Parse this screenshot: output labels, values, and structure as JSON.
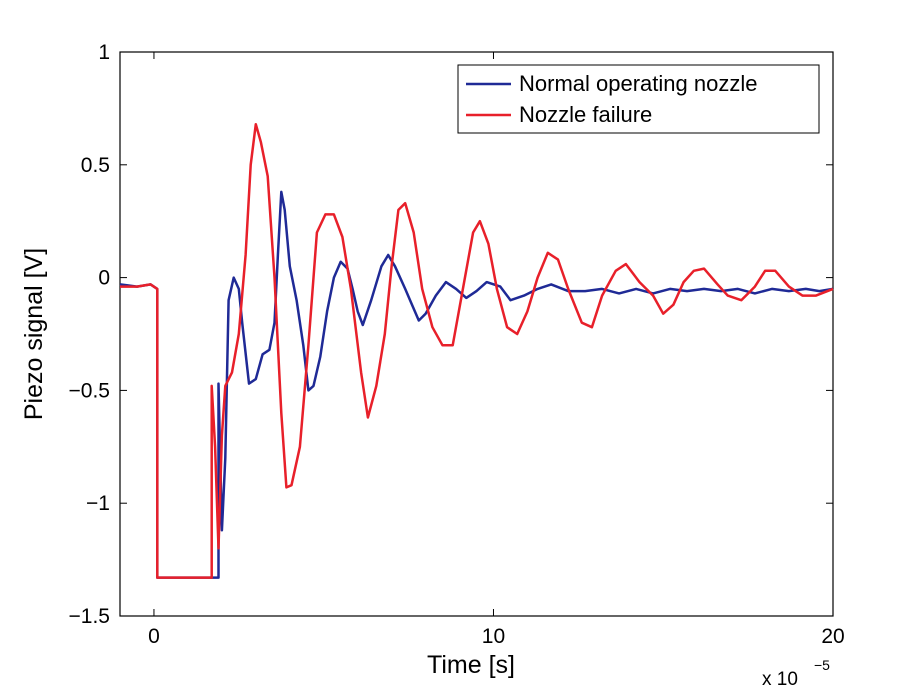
{
  "chart_data": {
    "type": "line",
    "title": "",
    "xlabel": "Time [s]",
    "ylabel": "Piezo signal [V]",
    "x_multiplier_label": "x 10",
    "x_multiplier_exponent": "−5",
    "xlim": [
      -1,
      20
    ],
    "ylim": [
      -1.5,
      1
    ],
    "x_unit_scale": 1e-05,
    "xticks": [
      0,
      10,
      20
    ],
    "xtick_labels": [
      "0",
      "10",
      "20"
    ],
    "yticks": [
      -1.5,
      -1,
      -0.5,
      0,
      0.5,
      1
    ],
    "ytick_labels": [
      "−1.5",
      "−1",
      "−0.5",
      "0",
      "0.5",
      "1"
    ],
    "grid": false,
    "legend_position": "top-right",
    "series": [
      {
        "name": "Normal operating nozzle",
        "color": "#1f2a96",
        "points": [
          [
            -1.0,
            -0.03
          ],
          [
            -0.5,
            -0.04
          ],
          [
            -0.1,
            -0.03
          ],
          [
            0.1,
            -0.05
          ],
          [
            0.1,
            -1.33
          ],
          [
            1.9,
            -1.33
          ],
          [
            1.9,
            -0.47
          ],
          [
            2.0,
            -1.12
          ],
          [
            2.1,
            -0.8
          ],
          [
            2.2,
            -0.1
          ],
          [
            2.35,
            0.0
          ],
          [
            2.5,
            -0.05
          ],
          [
            2.6,
            -0.2
          ],
          [
            2.8,
            -0.47
          ],
          [
            3.0,
            -0.45
          ],
          [
            3.2,
            -0.34
          ],
          [
            3.4,
            -0.32
          ],
          [
            3.55,
            -0.2
          ],
          [
            3.65,
            0.1
          ],
          [
            3.75,
            0.38
          ],
          [
            3.85,
            0.3
          ],
          [
            4.0,
            0.05
          ],
          [
            4.2,
            -0.1
          ],
          [
            4.4,
            -0.3
          ],
          [
            4.55,
            -0.5
          ],
          [
            4.7,
            -0.48
          ],
          [
            4.9,
            -0.35
          ],
          [
            5.1,
            -0.15
          ],
          [
            5.3,
            0.0
          ],
          [
            5.5,
            0.07
          ],
          [
            5.7,
            0.04
          ],
          [
            5.85,
            -0.05
          ],
          [
            6.0,
            -0.15
          ],
          [
            6.15,
            -0.21
          ],
          [
            6.4,
            -0.1
          ],
          [
            6.7,
            0.05
          ],
          [
            6.9,
            0.1
          ],
          [
            7.1,
            0.05
          ],
          [
            7.4,
            -0.05
          ],
          [
            7.6,
            -0.12
          ],
          [
            7.8,
            -0.19
          ],
          [
            8.0,
            -0.16
          ],
          [
            8.3,
            -0.08
          ],
          [
            8.6,
            -0.02
          ],
          [
            8.9,
            -0.05
          ],
          [
            9.2,
            -0.09
          ],
          [
            9.5,
            -0.06
          ],
          [
            9.8,
            -0.02
          ],
          [
            10.2,
            -0.04
          ],
          [
            10.5,
            -0.1
          ],
          [
            10.9,
            -0.08
          ],
          [
            11.3,
            -0.05
          ],
          [
            11.7,
            -0.03
          ],
          [
            12.2,
            -0.06
          ],
          [
            12.7,
            -0.06
          ],
          [
            13.2,
            -0.05
          ],
          [
            13.7,
            -0.07
          ],
          [
            14.2,
            -0.05
          ],
          [
            14.7,
            -0.07
          ],
          [
            15.2,
            -0.05
          ],
          [
            15.7,
            -0.06
          ],
          [
            16.2,
            -0.05
          ],
          [
            16.7,
            -0.06
          ],
          [
            17.2,
            -0.05
          ],
          [
            17.7,
            -0.07
          ],
          [
            18.2,
            -0.05
          ],
          [
            18.7,
            -0.06
          ],
          [
            19.2,
            -0.05
          ],
          [
            19.6,
            -0.06
          ],
          [
            20.0,
            -0.05
          ]
        ]
      },
      {
        "name": "Nozzle failure",
        "color": "#e8202a",
        "points": [
          [
            -1.0,
            -0.04
          ],
          [
            -0.5,
            -0.04
          ],
          [
            -0.1,
            -0.03
          ],
          [
            0.1,
            -0.05
          ],
          [
            0.1,
            -1.33
          ],
          [
            1.7,
            -1.33
          ],
          [
            1.7,
            -0.48
          ],
          [
            1.8,
            -0.75
          ],
          [
            1.9,
            -1.2
          ],
          [
            2.0,
            -0.7
          ],
          [
            2.1,
            -0.48
          ],
          [
            2.3,
            -0.42
          ],
          [
            2.5,
            -0.25
          ],
          [
            2.7,
            0.1
          ],
          [
            2.85,
            0.5
          ],
          [
            3.0,
            0.68
          ],
          [
            3.15,
            0.6
          ],
          [
            3.35,
            0.45
          ],
          [
            3.55,
            0.0
          ],
          [
            3.75,
            -0.6
          ],
          [
            3.9,
            -0.93
          ],
          [
            4.05,
            -0.92
          ],
          [
            4.3,
            -0.75
          ],
          [
            4.55,
            -0.3
          ],
          [
            4.8,
            0.2
          ],
          [
            5.05,
            0.28
          ],
          [
            5.3,
            0.28
          ],
          [
            5.55,
            0.18
          ],
          [
            5.8,
            -0.05
          ],
          [
            6.1,
            -0.42
          ],
          [
            6.3,
            -0.62
          ],
          [
            6.55,
            -0.48
          ],
          [
            6.8,
            -0.25
          ],
          [
            7.0,
            0.05
          ],
          [
            7.2,
            0.3
          ],
          [
            7.4,
            0.33
          ],
          [
            7.65,
            0.2
          ],
          [
            7.9,
            -0.05
          ],
          [
            8.2,
            -0.22
          ],
          [
            8.5,
            -0.3
          ],
          [
            8.8,
            -0.3
          ],
          [
            9.1,
            -0.05
          ],
          [
            9.4,
            0.2
          ],
          [
            9.6,
            0.25
          ],
          [
            9.85,
            0.15
          ],
          [
            10.1,
            -0.05
          ],
          [
            10.4,
            -0.22
          ],
          [
            10.7,
            -0.25
          ],
          [
            11.0,
            -0.15
          ],
          [
            11.3,
            0.0
          ],
          [
            11.6,
            0.11
          ],
          [
            11.9,
            0.08
          ],
          [
            12.2,
            -0.05
          ],
          [
            12.6,
            -0.2
          ],
          [
            12.9,
            -0.22
          ],
          [
            13.2,
            -0.08
          ],
          [
            13.6,
            0.03
          ],
          [
            13.9,
            0.06
          ],
          [
            14.3,
            -0.02
          ],
          [
            14.7,
            -0.08
          ],
          [
            15.0,
            -0.16
          ],
          [
            15.3,
            -0.12
          ],
          [
            15.6,
            -0.02
          ],
          [
            15.9,
            0.03
          ],
          [
            16.2,
            0.04
          ],
          [
            16.6,
            -0.03
          ],
          [
            16.9,
            -0.08
          ],
          [
            17.3,
            -0.1
          ],
          [
            17.7,
            -0.04
          ],
          [
            18.0,
            0.03
          ],
          [
            18.3,
            0.03
          ],
          [
            18.7,
            -0.04
          ],
          [
            19.1,
            -0.08
          ],
          [
            19.5,
            -0.08
          ],
          [
            20.0,
            -0.05
          ]
        ]
      }
    ]
  }
}
